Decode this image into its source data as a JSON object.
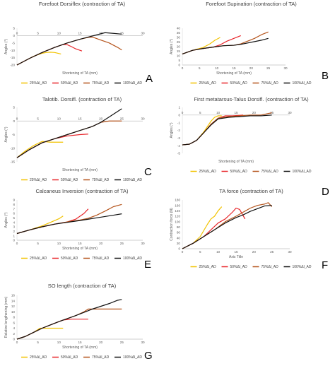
{
  "legend": [
    "25%Δl_AD",
    "50%Δl_AD",
    "75%Δl_AD",
    "100%Δl_AD"
  ],
  "colors": {
    "25": "#f2c300",
    "50": "#e8262b",
    "75": "#b5541c",
    "100": "#111111"
  },
  "chart_data": [
    {
      "letter": "A",
      "type": "line",
      "title": "Forefoot Dorsiflex (contraction of TA)",
      "xlabel": "Shortening of TA (mm)",
      "ylabel": "Angles (°)",
      "xlim": [
        0,
        30
      ],
      "ylim": [
        -20,
        5
      ],
      "xticks": [
        0,
        5,
        10,
        15,
        20,
        25,
        30
      ],
      "yticks": [
        5,
        0,
        -5,
        -10,
        -15,
        -20
      ],
      "x_axis_at": 0,
      "tick_labels_at": "axis",
      "series": [
        {
          "name": "25%Δl_AD",
          "x": [
            0,
            2,
            4,
            6,
            7,
            8,
            9,
            10.5
          ],
          "y": [
            -20,
            -17,
            -14,
            -12,
            -11.5,
            -11.3,
            -11.5,
            -12.5
          ]
        },
        {
          "name": "50%Δl_AD",
          "x": [
            0,
            3,
            6,
            9,
            11,
            12,
            13,
            14,
            15.5
          ],
          "y": [
            -20,
            -15.5,
            -11.5,
            -8,
            -6,
            -6.2,
            -7.5,
            -9,
            -10.5
          ]
        },
        {
          "name": "75%Δl_AD",
          "x": [
            0,
            3,
            6,
            9,
            12,
            15,
            17,
            18,
            20,
            22,
            24,
            25
          ],
          "y": [
            -20,
            -15.5,
            -11.5,
            -8,
            -5,
            -2.5,
            -1.2,
            -1,
            -3,
            -5,
            -8,
            -9.8
          ]
        },
        {
          "name": "100%Δl_AD",
          "x": [
            0,
            3,
            6,
            9,
            12,
            15,
            17,
            19,
            21,
            23,
            25
          ],
          "y": [
            -20,
            -15.5,
            -11.5,
            -8,
            -5,
            -2.5,
            -1,
            0.5,
            2,
            1.5,
            1
          ]
        }
      ]
    },
    {
      "letter": "B",
      "type": "line",
      "title": "Forefoot Supination (contraction of TA)",
      "xlabel": "Shortening of TA (mm)",
      "ylabel": "Angles (°)",
      "xlim": [
        0,
        30
      ],
      "ylim": [
        0,
        40
      ],
      "xticks": [
        0,
        5,
        10,
        15,
        20,
        25,
        30
      ],
      "yticks": [
        40,
        35,
        30,
        25,
        20,
        15,
        10,
        5,
        0
      ],
      "x_axis_at": 0,
      "tick_labels_at": "bottom",
      "series": [
        {
          "name": "25%Δl_AD",
          "x": [
            0,
            3,
            6,
            8,
            9.5,
            11
          ],
          "y": [
            12,
            16,
            19,
            23,
            27,
            30
          ]
        },
        {
          "name": "50%Δl_AD",
          "x": [
            0,
            3,
            6,
            9,
            11,
            13,
            15,
            17
          ],
          "y": [
            12,
            16,
            18,
            19.5,
            22,
            26,
            29,
            32
          ]
        },
        {
          "name": "75%Δl_AD",
          "x": [
            0,
            3,
            6,
            9,
            12,
            15,
            17,
            19,
            21,
            23,
            25
          ],
          "y": [
            12,
            16,
            18,
            19.5,
            21,
            21.5,
            23,
            26,
            29,
            33,
            36
          ]
        },
        {
          "name": "100%Δl_AD",
          "x": [
            0,
            3,
            6,
            9,
            12,
            15,
            17,
            19,
            21,
            23,
            25
          ],
          "y": [
            12,
            16,
            18,
            19.5,
            21,
            21.5,
            22.5,
            24,
            25.5,
            27,
            29
          ]
        }
      ]
    },
    {
      "letter": "C",
      "type": "line",
      "title": "Talotib. Dorsifl. (contraction of TA)",
      "xlabel": "Shortening of TA (mm)",
      "ylabel": "Angles (°)",
      "xlim": [
        0,
        30
      ],
      "ylim": [
        -15,
        5
      ],
      "xticks": [
        0,
        5,
        10,
        15,
        20,
        25,
        30
      ],
      "yticks": [
        5,
        0,
        -5,
        -10,
        -15
      ],
      "x_axis_at": 0,
      "tick_labels_at": "axis",
      "series": [
        {
          "name": "25%Δl_AD",
          "x": [
            0,
            2,
            4,
            6,
            8,
            10,
            11
          ],
          "y": [
            -13.5,
            -11,
            -9,
            -7.5,
            -7.8,
            -7.8,
            -7.8
          ]
        },
        {
          "name": "50%Δl_AD",
          "x": [
            0,
            3,
            6,
            9,
            12,
            15,
            17
          ],
          "y": [
            -13.5,
            -10.5,
            -8,
            -6.5,
            -5.5,
            -5,
            -4.8
          ]
        },
        {
          "name": "75%Δl_AD",
          "x": [
            0,
            3,
            6,
            9,
            12,
            15,
            18,
            20,
            22,
            25
          ],
          "y": [
            -13.5,
            -10.5,
            -8,
            -6.5,
            -5,
            -3.5,
            -2,
            -0.5,
            0,
            0
          ]
        },
        {
          "name": "100%Δl_AD",
          "x": [
            0,
            3,
            6,
            9,
            12,
            15,
            18,
            20,
            22,
            25
          ],
          "y": [
            -13.5,
            -10.5,
            -8,
            -6.5,
            -5,
            -3.5,
            -2,
            -0.5,
            1.5,
            4.5
          ]
        }
      ]
    },
    {
      "letter": "D",
      "type": "line",
      "title": "First metatarsus-Talus Dorsifl. (contraction of TA)",
      "xlabel": "Shortening of TA (mm)",
      "ylabel": "Angles (°)",
      "xlim": [
        0,
        30
      ],
      "ylim": [
        -5,
        1
      ],
      "xticks": [
        0,
        5,
        10,
        15,
        20,
        25,
        30
      ],
      "yticks": [
        1,
        0,
        -1,
        -2,
        -3,
        -4,
        -5
      ],
      "x_axis_at": 0,
      "tick_labels_at": "axis",
      "series": [
        {
          "name": "25%Δl_AD",
          "x": [
            0,
            2,
            4,
            6,
            8,
            9,
            10,
            11
          ],
          "y": [
            -3.9,
            -3.8,
            -3.3,
            -2.2,
            -0.8,
            -0.3,
            -0.1,
            -0.1
          ]
        },
        {
          "name": "50%Δl_AD",
          "x": [
            0,
            2,
            4,
            6,
            8,
            10,
            12,
            14,
            17
          ],
          "y": [
            -3.9,
            -3.8,
            -3.3,
            -2.3,
            -1.2,
            -0.4,
            -0.1,
            -0.1,
            0
          ]
        },
        {
          "name": "75%Δl_AD",
          "x": [
            0,
            2,
            4,
            6,
            8,
            10,
            13,
            16,
            19,
            22,
            25
          ],
          "y": [
            -3.9,
            -3.8,
            -3.3,
            -2.3,
            -1.2,
            -0.4,
            -0.2,
            -0.1,
            0,
            0,
            0.3
          ]
        },
        {
          "name": "100%Δl_AD",
          "x": [
            0,
            2,
            4,
            6,
            8,
            10,
            13,
            16,
            19,
            22,
            25
          ],
          "y": [
            -3.9,
            -3.8,
            -3.3,
            -2.3,
            -1.3,
            -0.5,
            -0.3,
            -0.2,
            -0.1,
            -0.1,
            0
          ]
        }
      ]
    },
    {
      "letter": "E",
      "type": "line",
      "title": "Calcaneus Inversion (contraction of TA)",
      "xlabel": "Shortening of TA (mm)",
      "ylabel": "Angles (°)",
      "xlim": [
        0,
        30
      ],
      "ylim": [
        0,
        9
      ],
      "xticks": [
        0,
        5,
        10,
        15,
        20,
        25,
        30
      ],
      "yticks": [
        9,
        8,
        7,
        6,
        5,
        4,
        3,
        2,
        1,
        0
      ],
      "x_axis_at": 0,
      "tick_labels_at": "bottom",
      "series": [
        {
          "name": "25%Δl_AD",
          "x": [
            0,
            3,
            6,
            8,
            10,
            11
          ],
          "y": [
            1.5,
            2.3,
            3.2,
            4.0,
            4.8,
            5.4
          ]
        },
        {
          "name": "50%Δl_AD",
          "x": [
            0,
            3,
            6,
            9,
            12,
            14,
            16,
            17
          ],
          "y": [
            1.5,
            2.3,
            3.0,
            3.6,
            4.1,
            4.7,
            6.0,
            7.0
          ]
        },
        {
          "name": "75%Δl_AD",
          "x": [
            0,
            3,
            6,
            9,
            12,
            15,
            17,
            19,
            21,
            23,
            25
          ],
          "y": [
            1.5,
            2.3,
            3.0,
            3.6,
            4.1,
            4.5,
            4.9,
            5.6,
            6.5,
            7.5,
            8.0
          ]
        },
        {
          "name": "100%Δl_AD",
          "x": [
            0,
            3,
            6,
            9,
            12,
            15,
            17,
            19,
            21,
            23,
            25
          ],
          "y": [
            1.5,
            2.3,
            3.0,
            3.6,
            4.0,
            4.4,
            4.7,
            5.0,
            5.3,
            5.6,
            5.9
          ]
        }
      ]
    },
    {
      "letter": "F",
      "type": "line",
      "title": "TA force (contraction of TA)",
      "xlabel": "Axis Title",
      "ylabel": "Contraction force (N)",
      "xlim": [
        0,
        30
      ],
      "ylim": [
        0,
        180
      ],
      "xticks": [
        0,
        5,
        10,
        15,
        20,
        25,
        30
      ],
      "yticks": [
        180,
        160,
        140,
        120,
        100,
        80,
        60,
        40,
        20,
        0
      ],
      "x_axis_at": 0,
      "tick_labels_at": "bottom",
      "series": [
        {
          "name": "25%Δl_AD",
          "x": [
            0,
            3,
            5,
            7,
            8,
            9,
            10,
            11
          ],
          "y": [
            0,
            20,
            45,
            90,
            110,
            120,
            140,
            155
          ]
        },
        {
          "name": "50%Δl_AD",
          "x": [
            0,
            3,
            6,
            8,
            10,
            12,
            14,
            15,
            16,
            17.5
          ],
          "y": [
            0,
            20,
            45,
            70,
            95,
            110,
            135,
            150,
            145,
            110
          ]
        },
        {
          "name": "75%Δl_AD",
          "x": [
            0,
            3,
            6,
            9,
            12,
            15,
            17,
            19,
            21,
            23,
            24,
            25
          ],
          "y": [
            0,
            20,
            45,
            70,
            100,
            120,
            135,
            150,
            160,
            165,
            170,
            155
          ]
        },
        {
          "name": "100%Δl_AD",
          "x": [
            0,
            3,
            6,
            9,
            12,
            15,
            17,
            19,
            21,
            23,
            25
          ],
          "y": [
            0,
            20,
            45,
            70,
            95,
            115,
            125,
            138,
            148,
            158,
            160
          ]
        }
      ]
    },
    {
      "letter": "G",
      "type": "line",
      "title": "SO length (contraction of TA)",
      "xlabel": "Shortening of TA (mm)",
      "ylabel": "Relative lengthening (mm)",
      "xlim": [
        0,
        30
      ],
      "ylim": [
        0,
        16
      ],
      "xticks": [
        0,
        5,
        10,
        15,
        20,
        25,
        30
      ],
      "yticks": [
        16,
        14,
        12,
        10,
        8,
        6,
        4,
        2,
        0
      ],
      "x_axis_at": 0,
      "tick_labels_at": "bottom",
      "series": [
        {
          "name": "25%Δl_AD",
          "x": [
            0,
            2,
            4,
            5.5,
            7,
            9,
            11
          ],
          "y": [
            0,
            1,
            2.5,
            4,
            4,
            4,
            4
          ]
        },
        {
          "name": "50%Δl_AD",
          "x": [
            0,
            2,
            4,
            6,
            8,
            10,
            11,
            13,
            15,
            17
          ],
          "y": [
            0,
            1,
            2.5,
            4,
            5.2,
            6.4,
            7,
            7.3,
            7.3,
            7.3
          ]
        },
        {
          "name": "75%Δl_AD",
          "x": [
            0,
            2,
            4,
            6,
            8,
            10,
            12,
            14,
            16,
            17,
            19,
            21,
            23,
            25
          ],
          "y": [
            0,
            1,
            2.5,
            4,
            5.2,
            6.4,
            7.5,
            8.6,
            10,
            11,
            11,
            11,
            11,
            11
          ]
        },
        {
          "name": "100%Δl_AD",
          "x": [
            0,
            2,
            4,
            6,
            8,
            10,
            12,
            14,
            16,
            18,
            20,
            22,
            24,
            25
          ],
          "y": [
            0,
            1,
            2.5,
            4,
            5.2,
            6.4,
            7.5,
            8.6,
            9.8,
            11,
            12,
            13,
            14.2,
            14.5
          ]
        }
      ]
    }
  ]
}
